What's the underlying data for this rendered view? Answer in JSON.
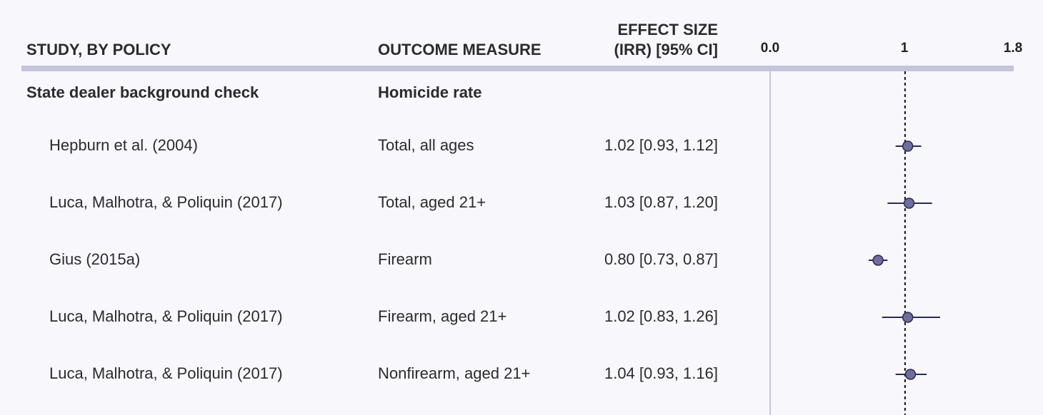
{
  "headers": {
    "study": "STUDY, BY POLICY",
    "outcome": "OUTCOME MEASURE",
    "effect_line1": "EFFECT SIZE",
    "effect_line2": "(IRR) [95% CI]"
  },
  "section": {
    "policy": "State dealer background check",
    "outcome": "Homicide rate"
  },
  "rows": [
    {
      "study": "Hepburn et al. (2004)",
      "outcome": "Total, all ages",
      "effect": "1.02 [0.93, 1.12]"
    },
    {
      "study": "Luca, Malhotra, & Poliquin (2017)",
      "outcome": "Total, aged 21+",
      "effect": "1.03 [0.87, 1.20]"
    },
    {
      "study": "Gius (2015a)",
      "outcome": "Firearm",
      "effect": "0.80 [0.73, 0.87]"
    },
    {
      "study": "Luca, Malhotra, & Poliquin (2017)",
      "outcome": "Firearm, aged 21+",
      "effect": "1.02 [0.83, 1.26]"
    },
    {
      "study": "Luca, Malhotra, & Poliquin (2017)",
      "outcome": "Nonfirearm, aged 21+",
      "effect": "1.04 [0.93, 1.16]"
    }
  ],
  "colors": {
    "marker_fill": "#6e6d9c",
    "marker_stroke": "#2b2a55",
    "ci_line": "#2b2a55",
    "zero_line": "#c5c4dc",
    "reference_line": "#111111",
    "header_rule": "#c5c4dc"
  },
  "chart_data": {
    "type": "scatter",
    "subtype": "forest-plot",
    "xlim": [
      0.0,
      1.8
    ],
    "xticks": [
      "0.0",
      "1",
      "1.8"
    ],
    "reference_value": 1,
    "reference_style": "dotted",
    "points": [
      {
        "estimate": 1.02,
        "lower": 0.93,
        "upper": 1.12
      },
      {
        "estimate": 1.03,
        "lower": 0.87,
        "upper": 1.2
      },
      {
        "estimate": 0.8,
        "lower": 0.73,
        "upper": 0.87
      },
      {
        "estimate": 1.02,
        "lower": 0.83,
        "upper": 1.26
      },
      {
        "estimate": 1.04,
        "lower": 0.93,
        "upper": 1.16
      }
    ]
  }
}
